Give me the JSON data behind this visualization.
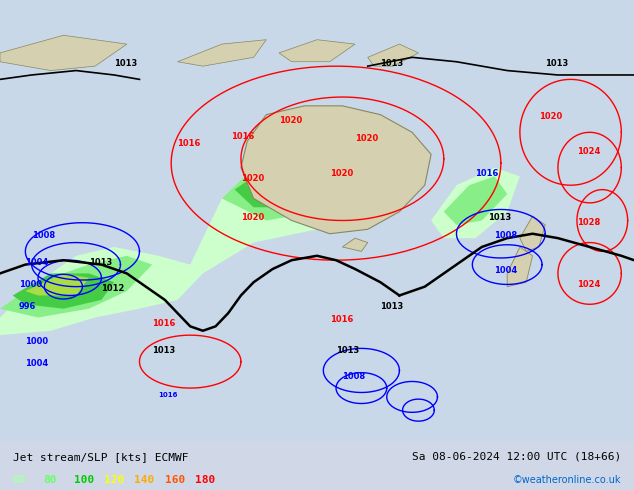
{
  "title_left": "Jet stream/SLP [kts] ECMWF",
  "title_right": "Sa 08-06-2024 12:00 UTC (18+66)",
  "credit": "©weatheronline.co.uk",
  "legend_values": [
    60,
    80,
    100,
    120,
    140,
    160,
    180
  ],
  "legend_colors": [
    "#aaffaa",
    "#66ff66",
    "#00cc00",
    "#ffff00",
    "#ffaa00",
    "#ff5500",
    "#ff0000"
  ],
  "bg_color": "#d0d8e8",
  "map_bg": "#c8d8e8",
  "bottom_bar_color": "#ffffff",
  "bottom_bar_height": 0.1,
  "fig_width": 6.34,
  "fig_height": 4.9,
  "dpi": 100
}
